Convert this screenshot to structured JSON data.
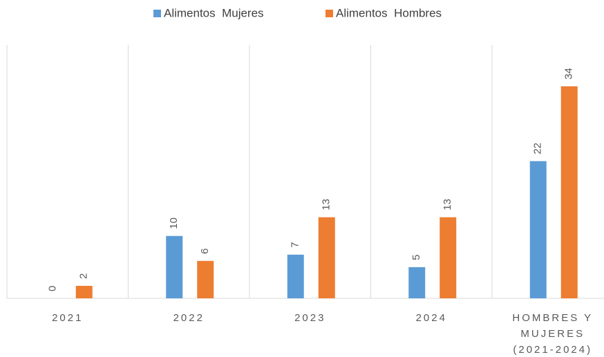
{
  "chart_data": {
    "type": "bar",
    "categories": [
      "2021",
      "2022",
      "2023",
      "2024",
      "HOMBRES Y MUJERES (2021-2024)"
    ],
    "series": [
      {
        "name": "Alimentos  Mujeres",
        "color": "#5b9bd5",
        "values": [
          0,
          10,
          7,
          5,
          22
        ]
      },
      {
        "name": "Alimentos  Hombres",
        "color": "#ed7d31",
        "values": [
          2,
          6,
          13,
          13,
          34
        ]
      }
    ],
    "legend": "top"
  }
}
